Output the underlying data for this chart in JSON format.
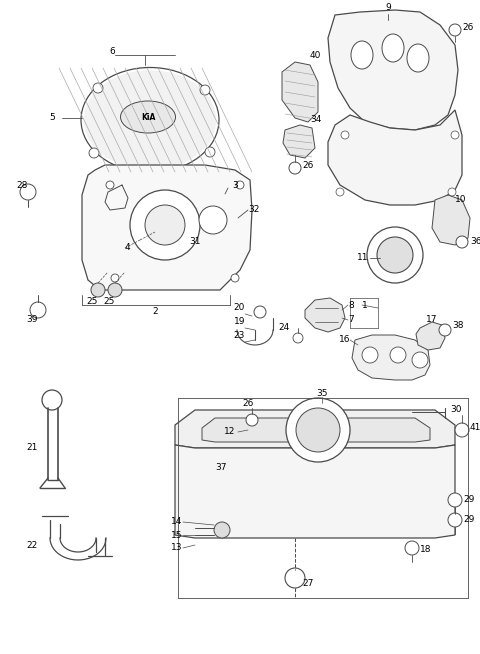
{
  "background": "#ffffff",
  "line_color": "#4a4a4a",
  "label_color": "#000000",
  "fig_width": 4.8,
  "fig_height": 6.54,
  "dpi": 100
}
